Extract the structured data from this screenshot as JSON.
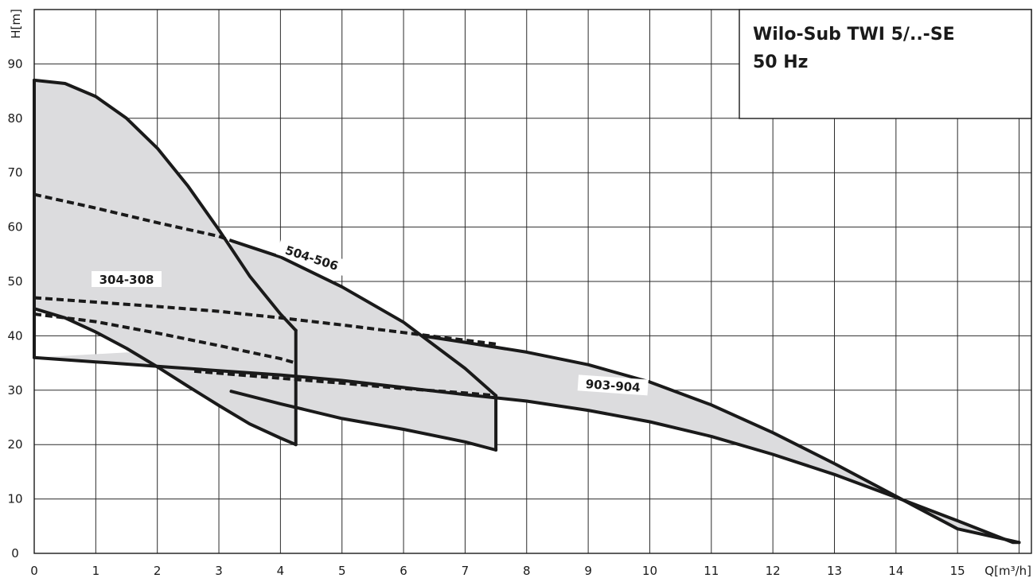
{
  "chart_data": {
    "type": "line",
    "title": "Wilo-Sub TWI 5/..-SE",
    "subtitle": "50 Hz",
    "xlabel": "Q[m³/h]",
    "ylabel": "H[m]",
    "xlim": [
      0,
      16.2
    ],
    "ylim": [
      0,
      100
    ],
    "x_ticks": [
      0,
      1,
      2,
      3,
      4,
      5,
      6,
      7,
      8,
      9,
      10,
      11,
      12,
      13,
      14,
      15
    ],
    "y_ticks": [
      0,
      10,
      20,
      30,
      40,
      50,
      60,
      70,
      80,
      90
    ],
    "grid": true,
    "series": [
      {
        "name": "304-308",
        "upper": {
          "x": [
            0,
            0.5,
            1,
            1.5,
            2,
            2.5,
            3,
            3.5,
            4,
            4.25
          ],
          "y": [
            87,
            86.4,
            84,
            80,
            74.5,
            67.5,
            59.5,
            51,
            44,
            41
          ]
        },
        "lower": {
          "x": [
            0,
            0.5,
            1,
            1.5,
            2,
            2.5,
            3,
            3.5,
            4,
            4.25
          ],
          "y": [
            45,
            43.3,
            40.7,
            37.7,
            34.3,
            30.7,
            27.2,
            23.8,
            21.2,
            20
          ]
        },
        "dashed": [
          {
            "x": [
              0,
              1,
              2,
              3,
              3.2
            ],
            "y": [
              66,
              63.5,
              60.8,
              58.3,
              57.5
            ]
          },
          {
            "x": [
              0,
              1,
              2,
              3,
              4,
              4.25
            ],
            "y": [
              44,
              42.6,
              40.5,
              38.2,
              35.8,
              35
            ]
          }
        ]
      },
      {
        "name": "504-506",
        "upper": {
          "x": [
            3.2,
            4,
            5,
            6,
            7,
            7.5
          ],
          "y": [
            57.5,
            54.5,
            49,
            42.5,
            34,
            29
          ]
        },
        "lower": {
          "x": [
            3.2,
            4,
            5,
            6,
            7,
            7.5
          ],
          "y": [
            29.8,
            27.5,
            24.8,
            22.8,
            20.5,
            19
          ]
        },
        "dashed": [
          {
            "x": [
              0,
              1,
              2,
              3,
              4,
              5,
              6,
              7,
              7.5
            ],
            "y": [
              47,
              46.2,
              45.4,
              44.5,
              43.3,
              42,
              40.6,
              39.2,
              38.5
            ]
          },
          {
            "x": [
              2.6,
              4,
              5,
              6,
              7,
              7.5
            ],
            "y": [
              33.5,
              32.2,
              31.3,
              30.3,
              29.5,
              29
            ]
          }
        ]
      },
      {
        "name": "903-904",
        "upper": {
          "x": [
            6.3,
            7,
            8,
            9,
            10,
            11,
            12,
            13,
            14,
            15,
            16
          ],
          "y": [
            40,
            38.8,
            37,
            34.7,
            31.5,
            27.3,
            22.2,
            16.5,
            10.5,
            4.5,
            2
          ]
        },
        "lower": {
          "x": [
            0,
            1,
            2,
            3,
            4,
            5,
            6,
            7,
            7.5,
            8,
            9,
            10,
            11,
            12,
            13,
            14,
            15,
            15.9,
            16
          ],
          "y": [
            36,
            35.2,
            34.4,
            33.6,
            32.8,
            31.8,
            30.5,
            29.2,
            28.6,
            28,
            26.3,
            24.2,
            21.5,
            18.2,
            14.5,
            10.3,
            6,
            2,
            2
          ]
        },
        "dashed": []
      }
    ],
    "labels": [
      {
        "text": "304-308",
        "x": 1.5,
        "y": 50
      },
      {
        "text": "504-506",
        "x": 4.5,
        "y": 54
      },
      {
        "text": "903-904",
        "x": 9.4,
        "y": 30.5
      }
    ]
  }
}
